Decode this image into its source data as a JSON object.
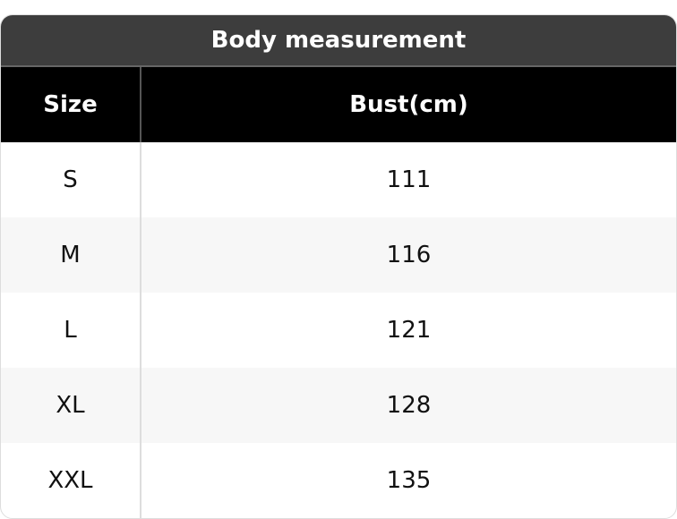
{
  "table": {
    "title": "Body measurement",
    "headers": [
      "Size",
      "Bust(cm)"
    ],
    "rows": [
      [
        "S",
        "111"
      ],
      [
        "M",
        "116"
      ],
      [
        "L",
        "121"
      ],
      [
        "XL",
        "128"
      ],
      [
        "XXL",
        "135"
      ]
    ]
  }
}
